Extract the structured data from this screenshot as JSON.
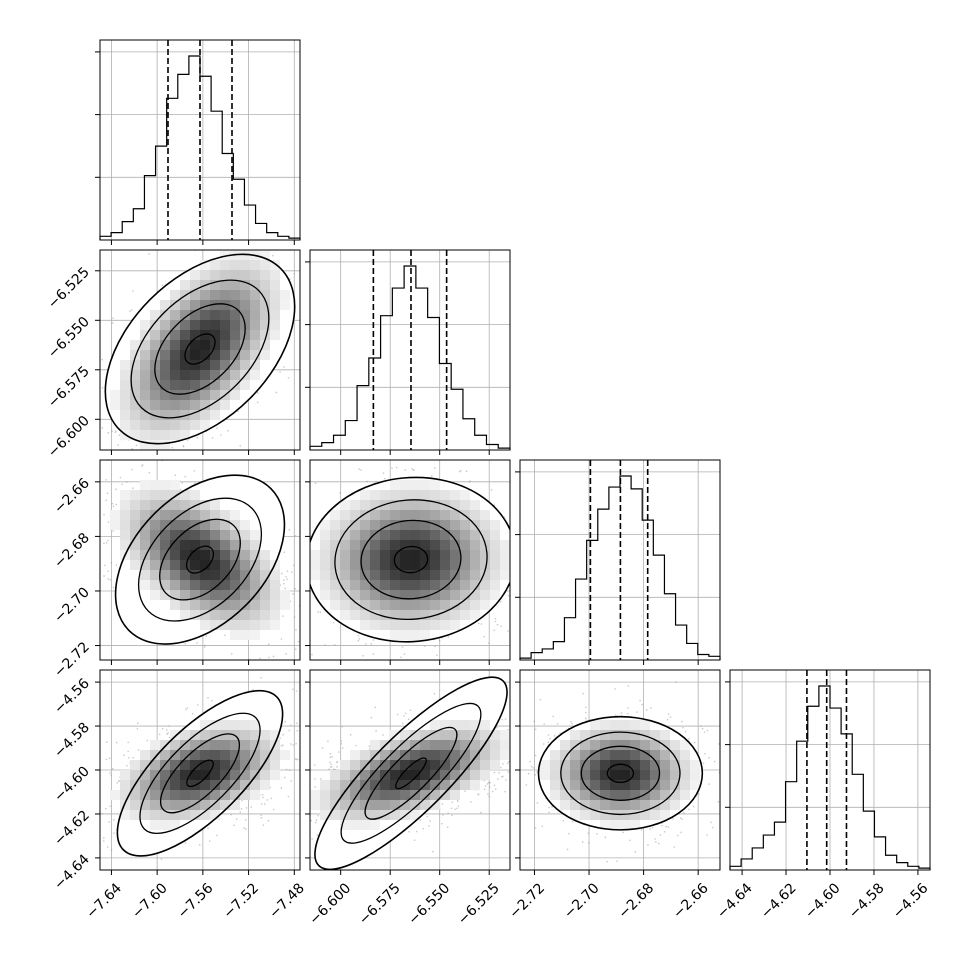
{
  "chart_data": {
    "type": "corner",
    "grid": true,
    "parameters": [
      {
        "median": -7.5625,
        "quantiles": [
          -7.5905,
          -7.5625,
          -7.5345
        ],
        "range": [
          -7.65,
          -7.475
        ],
        "x_ticks": [
          -7.64,
          -7.6,
          -7.56,
          -7.52,
          -7.48
        ],
        "x_tick_labels": [
          "−7.64",
          "−7.60",
          "−7.56",
          "−7.52",
          "−7.48"
        ],
        "histogram": [
          0.02,
          0.04,
          0.1,
          0.17,
          0.35,
          0.51,
          0.77,
          0.9,
          1.0,
          0.89,
          0.7,
          0.47,
          0.33,
          0.19,
          0.09,
          0.04,
          0.02,
          0.01
        ]
      },
      {
        "median": -6.5645,
        "quantiles": [
          -6.5835,
          -6.5645,
          -6.5465
        ],
        "range": [
          -6.6155,
          -6.5145
        ],
        "x_ticks": [
          -6.6,
          -6.575,
          -6.55,
          -6.525
        ],
        "x_tick_labels": [
          "−6.600",
          "−6.575",
          "−6.550",
          "−6.525"
        ],
        "y_ticks": [
          -6.525,
          -6.55,
          -6.575,
          -6.6
        ],
        "y_tick_labels": [
          "−6.525",
          "−6.550",
          "−6.575",
          "−6.600"
        ],
        "histogram": [
          0.02,
          0.04,
          0.08,
          0.16,
          0.35,
          0.5,
          0.73,
          0.88,
          1.0,
          0.88,
          0.72,
          0.47,
          0.33,
          0.17,
          0.08,
          0.03,
          0.01
        ]
      },
      {
        "median": -2.6885,
        "quantiles": [
          -2.6995,
          -2.6885,
          -2.6785
        ],
        "range": [
          -2.7253,
          -2.652
        ],
        "x_ticks": [
          -2.72,
          -2.7,
          -2.68,
          -2.66
        ],
        "x_tick_labels": [
          "−2.72",
          "−2.70",
          "−2.68",
          "−2.66"
        ],
        "y_ticks": [
          -2.66,
          -2.68,
          -2.7,
          -2.72
        ],
        "y_tick_labels": [
          "−2.66",
          "−2.68",
          "−2.70",
          "−2.72"
        ],
        "histogram": [
          0.01,
          0.04,
          0.06,
          0.1,
          0.23,
          0.44,
          0.65,
          0.82,
          0.94,
          1.0,
          0.93,
          0.76,
          0.57,
          0.36,
          0.19,
          0.09,
          0.03,
          0.02
        ]
      },
      {
        "median": -4.6015,
        "quantiles": [
          -4.6105,
          -4.6015,
          -4.5925
        ],
        "range": [
          -4.6455,
          -4.5545
        ],
        "x_ticks": [
          -4.64,
          -4.62,
          -4.6,
          -4.58,
          -4.56
        ],
        "x_tick_labels": [
          "−4.64",
          "−4.62",
          "−4.60",
          "−4.58",
          "−4.56"
        ],
        "y_ticks": [
          -4.56,
          -4.58,
          -4.6,
          -4.62,
          -4.64
        ],
        "y_tick_labels": [
          "−4.56",
          "−4.58",
          "−4.60",
          "−4.62",
          "−4.64"
        ],
        "histogram": [
          0.02,
          0.06,
          0.12,
          0.19,
          0.26,
          0.48,
          0.7,
          0.89,
          1.0,
          0.88,
          0.74,
          0.52,
          0.32,
          0.18,
          0.08,
          0.04,
          0.02,
          0.01
        ]
      }
    ],
    "pairs": [
      {
        "x": 0,
        "y": 1,
        "correlation": 0.55
      },
      {
        "x": 0,
        "y": 2,
        "correlation": -0.5
      },
      {
        "x": 1,
        "y": 2,
        "correlation": 0.03
      },
      {
        "x": 0,
        "y": 3,
        "correlation": 0.4
      },
      {
        "x": 1,
        "y": 3,
        "correlation": 0.55
      },
      {
        "x": 2,
        "y": 3,
        "correlation": 0.0
      }
    ],
    "colors": {
      "line": "#000000",
      "scatter": "#9a9a9a",
      "grid": "#b0b0b0",
      "density_light": "#f2f2f2",
      "density_dark": "#222222"
    }
  }
}
